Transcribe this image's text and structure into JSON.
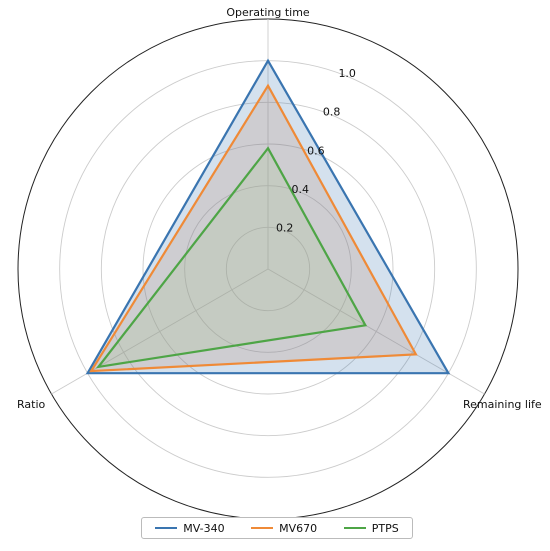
{
  "chart_data": {
    "type": "radar",
    "axes": [
      "Operating time",
      "Remaining life",
      "Ratio"
    ],
    "rlim": [
      0,
      1.2
    ],
    "rticks": [
      0.2,
      0.4,
      0.6,
      0.8,
      1.0
    ],
    "rtick_labels": [
      "0.2",
      "0.4",
      "0.6",
      "0.8",
      "1.0"
    ],
    "grid": true,
    "legend_position": "bottom-center",
    "series": [
      {
        "name": "MV-340",
        "color": "#3a75b0",
        "fill": "#3a75b0",
        "values": [
          1.0,
          1.0,
          1.0
        ]
      },
      {
        "name": "MV670",
        "color": "#ef8a37",
        "fill": "#b98a6e",
        "values": [
          0.88,
          0.82,
          0.98
        ]
      },
      {
        "name": "PTPS",
        "color": "#4ea546",
        "fill": "#a7c68f",
        "values": [
          0.58,
          0.54,
          0.94
        ]
      }
    ]
  }
}
